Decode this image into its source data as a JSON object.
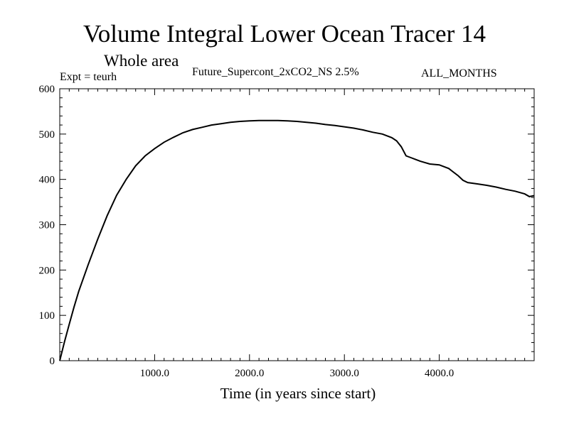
{
  "chart_data": {
    "type": "line",
    "title": "Volume Integral Lower Ocean Tracer 14",
    "subtitle": "Whole area",
    "experiment": "Expt = teurh",
    "run_label": "Future_Supercont_2xCO2_NS 2.5%",
    "months_label": "ALL_MONTHS",
    "xlabel": "Time (in years since start)",
    "ylabel": "",
    "xlim": [
      0,
      5000
    ],
    "ylim": [
      0,
      600
    ],
    "xticks": [
      1000,
      2000,
      3000,
      4000
    ],
    "xtick_labels": [
      "1000.0",
      "2000.0",
      "3000.0",
      "4000.0"
    ],
    "yticks": [
      0,
      100,
      200,
      300,
      400,
      500,
      600
    ],
    "ytick_labels": [
      "0",
      "100",
      "200",
      "300",
      "400",
      "500",
      "600"
    ],
    "grid": false,
    "series": [
      {
        "x": [
          0,
          50,
          100,
          150,
          200,
          300,
          400,
          500,
          600,
          700,
          800,
          900,
          1000,
          1100,
          1200,
          1300,
          1400,
          1500,
          1600,
          1700,
          1800,
          1900,
          2000,
          2100,
          2200,
          2300,
          2400,
          2500,
          2600,
          2700,
          2800,
          2900,
          3000,
          3100,
          3200,
          3300,
          3400,
          3500,
          3550,
          3600,
          3650,
          3700,
          3750,
          3800,
          3900,
          4000,
          4100,
          4200,
          4250,
          4300,
          4400,
          4500,
          4600,
          4700,
          4800,
          4900,
          4950,
          5000
        ],
        "y": [
          0,
          42,
          80,
          118,
          153,
          212,
          268,
          320,
          365,
          400,
          430,
          452,
          468,
          482,
          493,
          503,
          510,
          515,
          520,
          523,
          526,
          528,
          529,
          530,
          530,
          530,
          529,
          528,
          526,
          524,
          521,
          519,
          516,
          513,
          509,
          504,
          500,
          492,
          485,
          472,
          452,
          448,
          444,
          440,
          434,
          432,
          424,
          408,
          398,
          393,
          390,
          387,
          383,
          378,
          374,
          368,
          362,
          364
        ]
      }
    ]
  }
}
